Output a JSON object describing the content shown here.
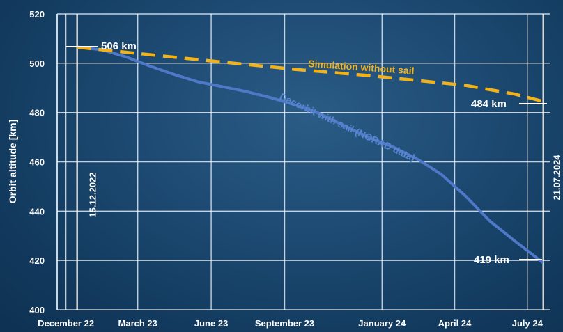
{
  "chart_data": {
    "type": "line",
    "title": "",
    "xlabel": "",
    "ylabel": "Orbit altitude [km]",
    "ylim": [
      400,
      520
    ],
    "y_ticks": [
      "400",
      "420",
      "440",
      "460",
      "480",
      "500",
      "520"
    ],
    "x_ticks": [
      "December 22",
      "March 23",
      "June 23",
      "September 23",
      "January 24",
      "April 24",
      "July 24"
    ],
    "x_tick_values": [
      "2022-12-01",
      "2023-03-01",
      "2023-06-01",
      "2023-09-01",
      "2024-01-01",
      "2024-04-01",
      "2024-07-01"
    ],
    "xlim": [
      "2022-11-20",
      "2024-07-30"
    ],
    "grid": true,
    "series": [
      {
        "name": "Decorbit with sail (NORAD data)",
        "color": "#4f79c8",
        "style": "solid",
        "points": [
          {
            "x": "2022-12-15",
            "y": 506.5
          },
          {
            "x": "2023-01-15",
            "y": 505.5
          },
          {
            "x": "2023-02-15",
            "y": 502.5
          },
          {
            "x": "2023-03-15",
            "y": 499.0
          },
          {
            "x": "2023-04-15",
            "y": 495.5
          },
          {
            "x": "2023-05-15",
            "y": 492.5
          },
          {
            "x": "2023-06-15",
            "y": 490.5
          },
          {
            "x": "2023-07-15",
            "y": 488.5
          },
          {
            "x": "2023-08-15",
            "y": 486.0
          },
          {
            "x": "2023-09-15",
            "y": 483.0
          },
          {
            "x": "2023-10-15",
            "y": 479.5
          },
          {
            "x": "2023-11-15",
            "y": 474.5
          },
          {
            "x": "2023-12-15",
            "y": 470.0
          },
          {
            "x": "2024-01-15",
            "y": 466.0
          },
          {
            "x": "2024-02-15",
            "y": 461.0
          },
          {
            "x": "2024-03-15",
            "y": 455.0
          },
          {
            "x": "2024-04-15",
            "y": 446.0
          },
          {
            "x": "2024-05-15",
            "y": 436.0
          },
          {
            "x": "2024-06-15",
            "y": 428.0
          },
          {
            "x": "2024-07-21",
            "y": 419.0
          }
        ]
      },
      {
        "name": "Simulation without sail",
        "color": "#f2b21c",
        "style": "dashed",
        "points": [
          {
            "x": "2022-12-15",
            "y": 506.5
          },
          {
            "x": "2023-03-15",
            "y": 503.5
          },
          {
            "x": "2023-06-15",
            "y": 500.5
          },
          {
            "x": "2023-09-15",
            "y": 497.5
          },
          {
            "x": "2023-12-15",
            "y": 495.0
          },
          {
            "x": "2024-01-15",
            "y": 494.0
          },
          {
            "x": "2024-04-15",
            "y": 491.0
          },
          {
            "x": "2024-06-15",
            "y": 487.5
          },
          {
            "x": "2024-07-21",
            "y": 484.5
          }
        ]
      }
    ],
    "vertical_markers": [
      {
        "x": "2022-12-15",
        "label": "15.12.2022"
      },
      {
        "x": "2024-07-21",
        "label": "21.07.2024"
      }
    ],
    "annotations": {
      "start_altitude": "506 km",
      "end_altitude_sim": "484 km",
      "end_altitude_sail": "419 km"
    }
  }
}
